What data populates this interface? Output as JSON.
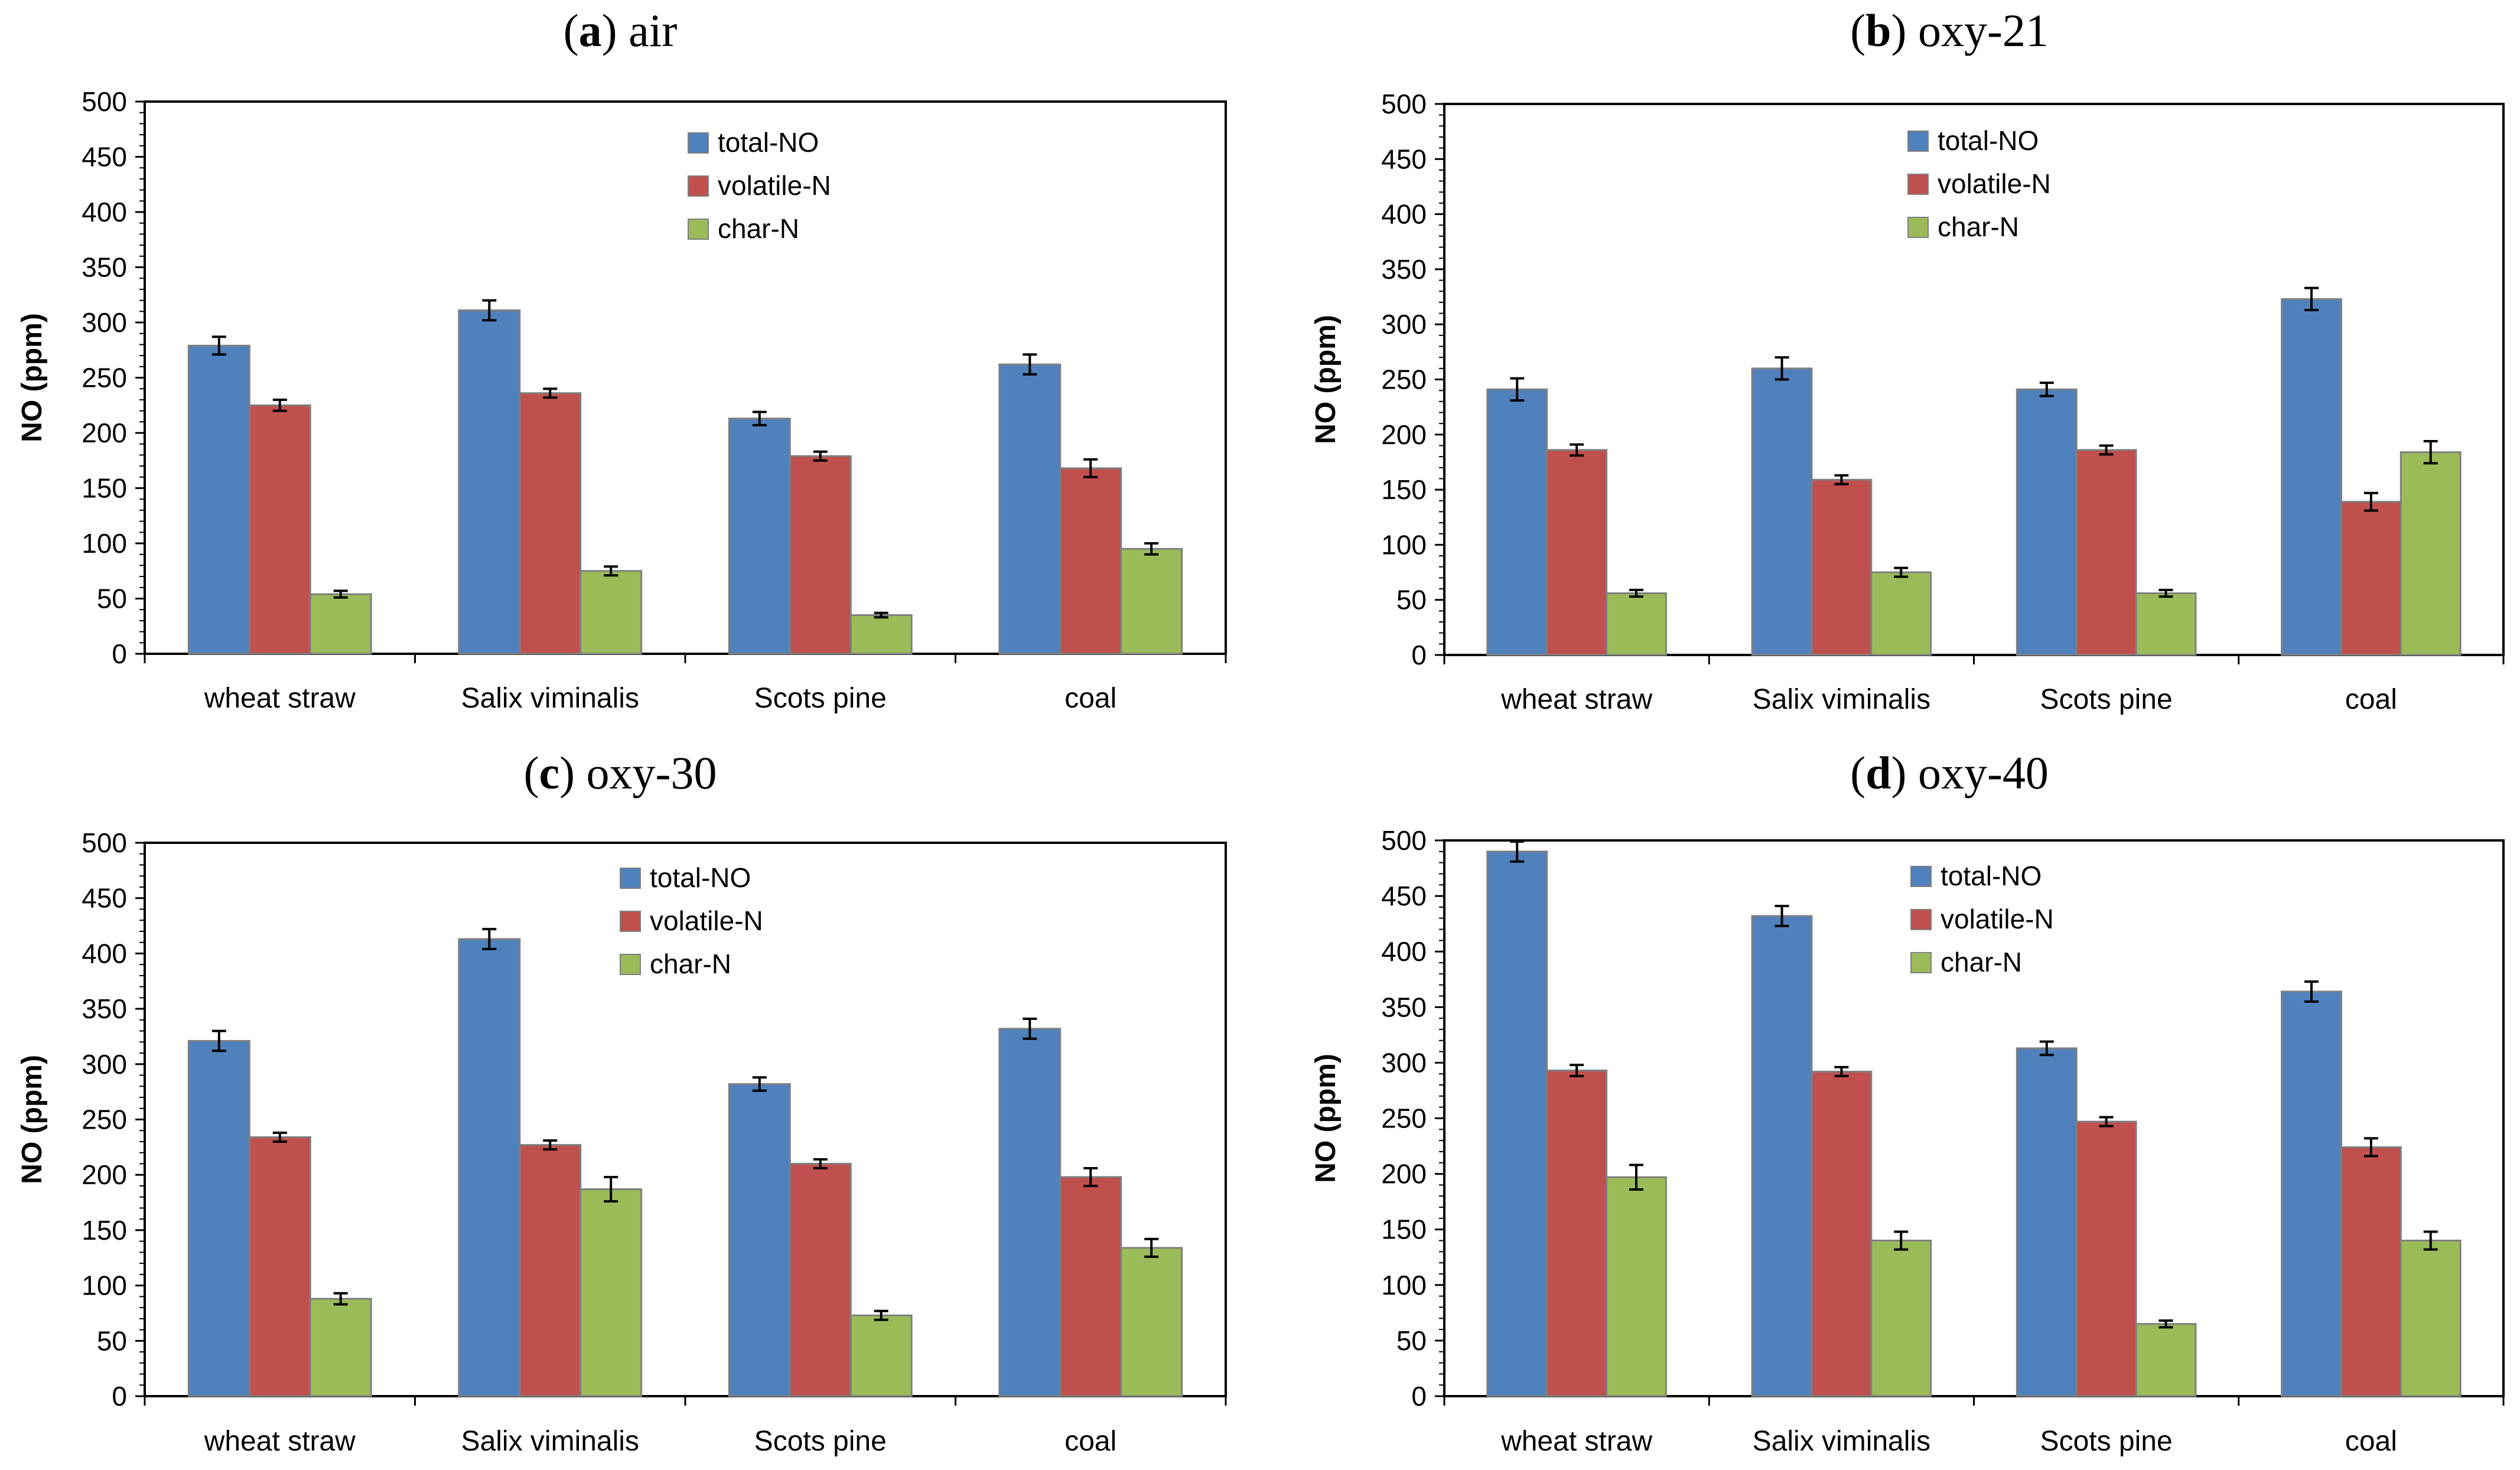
{
  "colors": {
    "total": "#4F81BD",
    "volatile": "#C0504D",
    "char": "#9BBB59",
    "bar_border": "#7f7f7f",
    "axis": "#000000"
  },
  "chart_data": [
    {
      "type": "bar",
      "panel_letter": "a",
      "panel_name": " air",
      "title": "(a) air",
      "ylabel": "NO (ppm)",
      "xlabel": "",
      "ylim": [
        0,
        500
      ],
      "yticks": [
        "0",
        "50",
        "100",
        "150",
        "200",
        "250",
        "300",
        "350",
        "400",
        "450",
        "500"
      ],
      "categories": [
        "wheat straw",
        "Salix viminalis",
        "Scots pine",
        "coal"
      ],
      "legend_position": "top-center",
      "series": [
        {
          "name": "total-NO",
          "values": [
            279,
            311,
            213,
            262
          ],
          "errors": [
            8,
            9,
            6,
            9
          ]
        },
        {
          "name": "volatile-N",
          "values": [
            225,
            236,
            179,
            168
          ],
          "errors": [
            5,
            4,
            4,
            8
          ]
        },
        {
          "name": "char-N",
          "values": [
            54,
            75,
            35,
            95
          ],
          "errors": [
            3,
            4,
            2,
            5
          ]
        }
      ]
    },
    {
      "type": "bar",
      "panel_letter": "b",
      "panel_name": " oxy-21",
      "title": "(b) oxy-21",
      "ylabel": "NO (ppm)",
      "xlabel": "",
      "ylim": [
        0,
        500
      ],
      "yticks": [
        "0",
        "50",
        "100",
        "150",
        "200",
        "250",
        "300",
        "350",
        "400",
        "450",
        "500"
      ],
      "categories": [
        "wheat straw",
        "Salix viminalis",
        "Scots pine",
        "coal"
      ],
      "legend_position": "top-center",
      "series": [
        {
          "name": "total-NO",
          "values": [
            241,
            260,
            241,
            323
          ],
          "errors": [
            10,
            10,
            6,
            10
          ]
        },
        {
          "name": "volatile-N",
          "values": [
            186,
            159,
            186,
            139
          ],
          "errors": [
            5,
            4,
            4,
            8
          ]
        },
        {
          "name": "char-N",
          "values": [
            56,
            75,
            56,
            184
          ],
          "errors": [
            3,
            4,
            3,
            10
          ]
        }
      ]
    },
    {
      "type": "bar",
      "panel_letter": "c",
      "panel_name": " oxy-30",
      "title": "(c) oxy-30",
      "ylabel": "NO (ppm)",
      "xlabel": "",
      "ylim": [
        0,
        500
      ],
      "yticks": [
        "0",
        "50",
        "100",
        "150",
        "200",
        "250",
        "300",
        "350",
        "400",
        "450",
        "500"
      ],
      "categories": [
        "wheat straw",
        "Salix viminalis",
        "Scots pine",
        "coal"
      ],
      "legend_position": "top-center",
      "series": [
        {
          "name": "total-NO",
          "values": [
            321,
            413,
            282,
            332
          ],
          "errors": [
            9,
            9,
            6,
            9
          ]
        },
        {
          "name": "volatile-N",
          "values": [
            234,
            227,
            210,
            198
          ],
          "errors": [
            4,
            4,
            4,
            8
          ]
        },
        {
          "name": "char-N",
          "values": [
            88,
            187,
            73,
            134
          ],
          "errors": [
            5,
            11,
            4,
            8
          ]
        }
      ]
    },
    {
      "type": "bar",
      "panel_letter": "d",
      "panel_name": " oxy-40",
      "title": "(d) oxy-40",
      "ylabel": "NO (ppm)",
      "xlabel": "",
      "ylim": [
        0,
        500
      ],
      "yticks": [
        "0",
        "50",
        "100",
        "150",
        "200",
        "250",
        "300",
        "350",
        "400",
        "450",
        "500"
      ],
      "categories": [
        "wheat straw",
        "Salix viminalis",
        "Scots pine",
        "coal"
      ],
      "legend_position": "top-center",
      "series": [
        {
          "name": "total-NO",
          "values": [
            490,
            432,
            313,
            364
          ],
          "errors": [
            9,
            9,
            6,
            9
          ]
        },
        {
          "name": "volatile-N",
          "values": [
            293,
            292,
            247,
            224
          ],
          "errors": [
            5,
            4,
            4,
            8
          ]
        },
        {
          "name": "char-N",
          "values": [
            197,
            140,
            65,
            140
          ],
          "errors": [
            11,
            8,
            3,
            8
          ]
        }
      ]
    }
  ]
}
